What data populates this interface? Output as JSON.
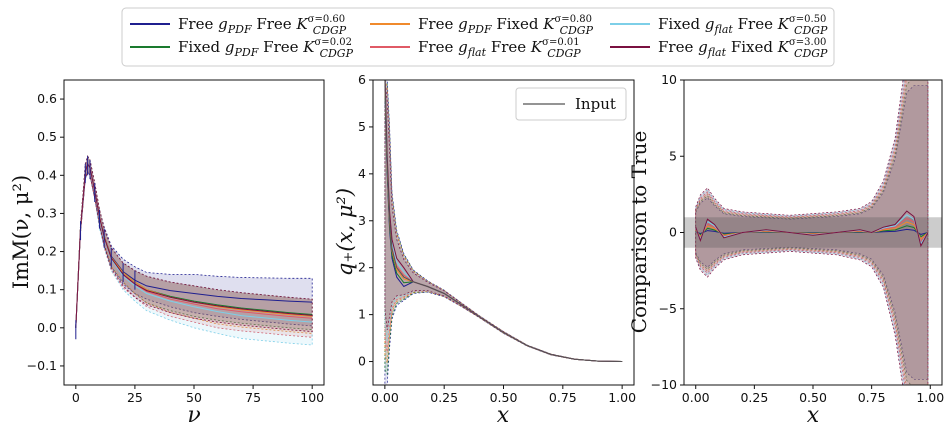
{
  "legend": {
    "entries": [
      {
        "id": "s1",
        "g": "Free",
        "sub": "PDF",
        "k": "Free",
        "sigma": "0.60",
        "color": "#1f1f8f"
      },
      {
        "id": "s2",
        "g": "Fixed",
        "sub": "PDF",
        "k": "Free",
        "sigma": "0.02",
        "color": "#1a7a2e"
      },
      {
        "id": "s3",
        "g": "Free",
        "sub": "PDF",
        "k": "Fixed",
        "sigma": "0.80",
        "color": "#f08a2c"
      },
      {
        "id": "s4",
        "g": "Free",
        "sub": "flat",
        "k": "Free",
        "sigma": "0.01",
        "color": "#e05a66"
      },
      {
        "id": "s5",
        "g": "Fixed",
        "sub": "flat",
        "k": "Free",
        "sigma": "0.50",
        "color": "#7dcfe8"
      },
      {
        "id": "s6",
        "g": "Free",
        "sub": "flat",
        "k": "Fixed",
        "sigma": "3.00",
        "color": "#7a1040"
      }
    ],
    "g_letter": "g",
    "k_letter": "K",
    "k_sub": "CDGP",
    "sigma_prefix": "σ="
  },
  "chart_data": [
    {
      "type": "area",
      "title": "",
      "xlabel": "ν",
      "ylabel": "ImM(ν, μ²)",
      "xlim": [
        -5,
        105
      ],
      "ylim": [
        -0.15,
        0.65
      ],
      "xticks": [
        "0",
        "25",
        "50",
        "75",
        "100"
      ],
      "yticks": [
        "−0.1",
        "0.0",
        "0.1",
        "0.2",
        "0.3",
        "0.4",
        "0.5",
        "0.6"
      ],
      "x": [
        0,
        2,
        4,
        5,
        6,
        8,
        10,
        12,
        15,
        20,
        25,
        30,
        40,
        50,
        60,
        70,
        80,
        90,
        100
      ],
      "central": [
        0.0,
        0.26,
        0.41,
        0.43,
        0.42,
        0.36,
        0.29,
        0.24,
        0.19,
        0.15,
        0.13,
        0.115,
        0.1,
        0.09,
        0.08,
        0.072,
        0.066,
        0.06,
        0.055
      ],
      "series": [
        {
          "name": "s1",
          "upper_offset": [
            0,
            0.01,
            0.02,
            0.02,
            0.02,
            0.02,
            0.02,
            0.025,
            0.025,
            0.03,
            0.03,
            0.03,
            0.04,
            0.05,
            0.055,
            0.06,
            0.065,
            0.07,
            0.075
          ],
          "lower_offset": [
            0,
            0.01,
            0.02,
            0.02,
            0.02,
            0.02,
            0.02,
            0.025,
            0.03,
            0.035,
            0.04,
            0.04,
            0.045,
            0.05,
            0.05,
            0.05,
            0.05,
            0.05,
            0.05
          ]
        },
        {
          "name": "s2",
          "upper_offset": [
            0,
            0.01,
            0.015,
            0.02,
            0.02,
            0.02,
            0.02,
            0.02,
            0.02,
            0.02,
            0.02,
            0.02,
            0.02,
            0.02,
            0.02,
            0.02,
            0.02,
            0.02,
            0.02
          ],
          "lower_offset": [
            0,
            0.01,
            0.015,
            0.02,
            0.02,
            0.02,
            0.02,
            0.02,
            0.03,
            0.03,
            0.04,
            0.05,
            0.055,
            0.06,
            0.06,
            0.06,
            0.06,
            0.06,
            0.06
          ]
        },
        {
          "name": "s3",
          "upper_offset": [
            0,
            0.01,
            0.015,
            0.02,
            0.02,
            0.02,
            0.02,
            0.02,
            0.02,
            0.02,
            0.02,
            0.02,
            0.02,
            0.02,
            0.02,
            0.02,
            0.02,
            0.02,
            0.02
          ],
          "lower_offset": [
            0,
            0.01,
            0.015,
            0.02,
            0.02,
            0.02,
            0.02,
            0.02,
            0.03,
            0.03,
            0.04,
            0.05,
            0.06,
            0.065,
            0.07,
            0.07,
            0.07,
            0.07,
            0.07
          ]
        },
        {
          "name": "s4",
          "upper_offset": [
            0,
            0.01,
            0.015,
            0.02,
            0.02,
            0.02,
            0.02,
            0.02,
            0.02,
            0.02,
            0.02,
            0.02,
            0.02,
            0.02,
            0.02,
            0.02,
            0.02,
            0.02,
            0.02
          ],
          "lower_offset": [
            0,
            0.01,
            0.02,
            0.02,
            0.02,
            0.02,
            0.02,
            0.03,
            0.04,
            0.045,
            0.05,
            0.06,
            0.07,
            0.075,
            0.08,
            0.08,
            0.08,
            0.08,
            0.08
          ]
        },
        {
          "name": "s5",
          "upper_offset": [
            0,
            0.01,
            0.015,
            0.02,
            0.02,
            0.02,
            0.02,
            0.02,
            0.02,
            0.02,
            0.02,
            0.02,
            0.02,
            0.02,
            0.02,
            0.02,
            0.02,
            0.02,
            0.02
          ],
          "lower_offset": [
            0,
            0.01,
            0.02,
            0.02,
            0.02,
            0.02,
            0.03,
            0.03,
            0.04,
            0.05,
            0.06,
            0.07,
            0.08,
            0.09,
            0.095,
            0.1,
            0.1,
            0.1,
            0.1
          ]
        },
        {
          "name": "s6",
          "upper_offset": [
            0,
            0.01,
            0.015,
            0.02,
            0.02,
            0.02,
            0.02,
            0.02,
            0.02,
            0.02,
            0.02,
            0.02,
            0.02,
            0.02,
            0.02,
            0.02,
            0.02,
            0.02,
            0.02
          ],
          "lower_offset": [
            0,
            0.01,
            0.02,
            0.02,
            0.02,
            0.02,
            0.02,
            0.025,
            0.035,
            0.04,
            0.05,
            0.055,
            0.06,
            0.065,
            0.065,
            0.065,
            0.065,
            0.065,
            0.065
          ]
        }
      ]
    },
    {
      "type": "area",
      "title": "",
      "xlabel": "x",
      "ylabel": "q₊(x, μ²)",
      "xlim": [
        -0.05,
        1.05
      ],
      "ylim": [
        -0.5,
        6
      ],
      "xticks": [
        "0.00",
        "0.25",
        "0.50",
        "0.75",
        "1.00"
      ],
      "yticks": [
        "0",
        "1",
        "2",
        "3",
        "4",
        "5",
        "6"
      ],
      "legend_label": "Input",
      "x": [
        0.0,
        0.01,
        0.02,
        0.03,
        0.05,
        0.08,
        0.12,
        0.18,
        0.25,
        0.32,
        0.4,
        0.5,
        0.6,
        0.7,
        0.8,
        0.9,
        1.0
      ],
      "central": [
        6.0,
        4.2,
        3.0,
        2.4,
        2.0,
        1.8,
        1.7,
        1.6,
        1.45,
        1.22,
        0.95,
        0.62,
        0.34,
        0.15,
        0.05,
        0.01,
        0.0
      ],
      "band_upper": [
        6.0,
        6.0,
        5.0,
        3.6,
        2.8,
        2.3,
        1.95,
        1.72,
        1.52,
        1.26,
        0.97,
        0.64,
        0.35,
        0.16,
        0.055,
        0.012,
        0.0
      ],
      "band_lower": [
        -0.5,
        -0.5,
        0.3,
        0.9,
        1.2,
        1.3,
        1.45,
        1.48,
        1.38,
        1.18,
        0.93,
        0.6,
        0.33,
        0.14,
        0.045,
        0.008,
        0.0
      ]
    },
    {
      "type": "area",
      "title": "",
      "xlabel": "x",
      "ylabel": "Comparison to True",
      "xlim": [
        -0.05,
        1.05
      ],
      "ylim": [
        -10,
        10
      ],
      "xticks": [
        "0.00",
        "0.25",
        "0.50",
        "0.75",
        "1.00"
      ],
      "yticks": [
        "−10",
        "−5",
        "0",
        "5",
        "10"
      ],
      "reference_band": [
        -1,
        1
      ],
      "x": [
        0.0,
        0.02,
        0.05,
        0.08,
        0.12,
        0.2,
        0.3,
        0.4,
        0.5,
        0.6,
        0.7,
        0.75,
        0.8,
        0.85,
        0.9,
        0.93,
        0.96,
        0.99
      ],
      "band_upper": [
        1.5,
        2.2,
        2.6,
        2.0,
        1.4,
        1.2,
        1.1,
        1.0,
        1.1,
        1.2,
        1.4,
        1.8,
        3.0,
        5.5,
        10.5,
        11,
        11,
        11
      ],
      "band_lower": [
        -1.5,
        -2.2,
        -2.6,
        -2.1,
        -1.6,
        -1.3,
        -1.2,
        -1.1,
        -1.2,
        -1.3,
        -1.6,
        -2.0,
        -3.2,
        -6.0,
        -10.5,
        -11,
        -11,
        -11
      ],
      "central": [
        0.2,
        -0.3,
        0.5,
        0.3,
        -0.2,
        0.0,
        0.1,
        0.0,
        -0.1,
        0.0,
        0.1,
        0.0,
        0.2,
        0.3,
        0.8,
        0.6,
        -0.5,
        0.0
      ]
    }
  ]
}
